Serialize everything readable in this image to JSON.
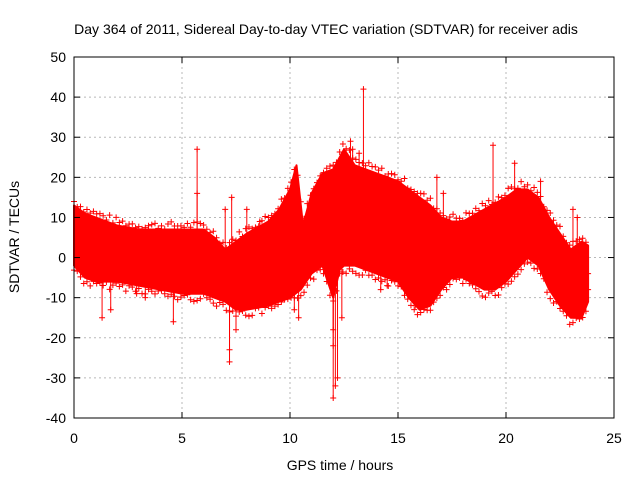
{
  "chart_data": {
    "type": "scatter",
    "title": "Day 364 of 2011, Sidereal Day-to-day VTEC variation (SDTVAR) for receiver adis",
    "xlabel": "GPS time / hours",
    "ylabel": "SDTVAR / TECUs",
    "xlim": [
      0,
      25
    ],
    "ylim": [
      -40,
      50
    ],
    "x_ticks": [
      0,
      5,
      10,
      15,
      20,
      25
    ],
    "y_ticks": [
      -40,
      -30,
      -20,
      -10,
      0,
      10,
      20,
      30,
      40,
      50
    ],
    "x_tick_labels": [
      "0",
      "5",
      "10",
      "15",
      "20",
      "25"
    ],
    "y_tick_labels": [
      "-40",
      "-30",
      "-20",
      "-10",
      "0",
      "10",
      "20",
      "30",
      "40",
      "50"
    ],
    "grid": true,
    "marker": "+",
    "series_color": "#ff0000",
    "series": [
      {
        "name": "SDTVAR",
        "band_upper": [
          [
            0,
            13
          ],
          [
            0.5,
            11
          ],
          [
            1,
            10
          ],
          [
            2,
            8
          ],
          [
            3,
            7
          ],
          [
            4,
            7
          ],
          [
            5,
            7
          ],
          [
            6,
            7
          ],
          [
            6.5,
            5
          ],
          [
            7,
            2
          ],
          [
            7.5,
            4
          ],
          [
            8,
            6
          ],
          [
            9,
            9
          ],
          [
            9.5,
            12
          ],
          [
            10,
            17
          ],
          [
            10.3,
            23
          ],
          [
            10.6,
            8
          ],
          [
            11,
            16
          ],
          [
            11.5,
            21
          ],
          [
            12,
            22
          ],
          [
            12.5,
            27
          ],
          [
            13,
            23
          ],
          [
            14,
            21
          ],
          [
            15,
            19
          ],
          [
            16,
            15
          ],
          [
            16.5,
            13
          ],
          [
            17,
            10
          ],
          [
            17.5,
            9
          ],
          [
            18,
            9
          ],
          [
            19,
            12
          ],
          [
            20,
            15
          ],
          [
            20.5,
            17
          ],
          [
            21,
            17
          ],
          [
            21.5,
            15
          ],
          [
            22,
            10
          ],
          [
            22.5,
            6
          ],
          [
            23,
            2
          ],
          [
            23.5,
            4
          ],
          [
            23.8,
            3
          ]
        ],
        "band_lower": [
          [
            0,
            -2
          ],
          [
            0.5,
            -5
          ],
          [
            1,
            -6
          ],
          [
            2,
            -6
          ],
          [
            3,
            -7
          ],
          [
            4,
            -8
          ],
          [
            5,
            -9
          ],
          [
            6,
            -9
          ],
          [
            6.5,
            -10
          ],
          [
            7,
            -11
          ],
          [
            7.5,
            -13
          ],
          [
            8,
            -13
          ],
          [
            9,
            -12
          ],
          [
            10,
            -10
          ],
          [
            10.5,
            -8
          ],
          [
            11,
            -4
          ],
          [
            11.5,
            -2
          ],
          [
            12,
            -10
          ],
          [
            12.3,
            -3
          ],
          [
            12.5,
            -2
          ],
          [
            13,
            -2
          ],
          [
            14,
            -4
          ],
          [
            15,
            -6
          ],
          [
            15.5,
            -10
          ],
          [
            16,
            -13
          ],
          [
            16.5,
            -12
          ],
          [
            17,
            -8
          ],
          [
            17.5,
            -5
          ],
          [
            18,
            -5
          ],
          [
            19,
            -8
          ],
          [
            19.5,
            -8
          ],
          [
            20,
            -6
          ],
          [
            20.5,
            -3
          ],
          [
            21,
            0
          ],
          [
            21.5,
            -2
          ],
          [
            22,
            -8
          ],
          [
            22.5,
            -12
          ],
          [
            23,
            -15
          ],
          [
            23.5,
            -15
          ],
          [
            23.8,
            -11
          ]
        ],
        "outliers": [
          [
            13.4,
            42
          ],
          [
            19.4,
            28
          ],
          [
            20.4,
            23.5
          ],
          [
            5.7,
            27
          ],
          [
            5.7,
            16
          ],
          [
            4.6,
            -16
          ],
          [
            1.3,
            -15
          ],
          [
            7.2,
            -26
          ],
          [
            7.2,
            -23
          ],
          [
            7.5,
            -18
          ],
          [
            12.0,
            -35
          ],
          [
            12.1,
            -32
          ],
          [
            12.2,
            -30
          ],
          [
            12.0,
            -22
          ],
          [
            12.0,
            -18
          ],
          [
            12.4,
            -15
          ],
          [
            12.8,
            29
          ],
          [
            12.9,
            27
          ],
          [
            13.2,
            26
          ],
          [
            16.8,
            20
          ],
          [
            17.1,
            16
          ],
          [
            21.6,
            19
          ],
          [
            23.1,
            12
          ],
          [
            23.3,
            10
          ],
          [
            23.7,
            0
          ],
          [
            23.8,
            -4
          ],
          [
            23.8,
            -8
          ],
          [
            7.0,
            12
          ],
          [
            7.3,
            15
          ],
          [
            8.0,
            12
          ],
          [
            8.6,
            9
          ],
          [
            9.6,
            10
          ],
          [
            10.4,
            -15
          ],
          [
            10.2,
            -13
          ],
          [
            3.3,
            -10
          ],
          [
            1.7,
            -13
          ],
          [
            2.9,
            -9
          ],
          [
            14.2,
            -8
          ],
          [
            14.5,
            -7
          ],
          [
            15.8,
            -12
          ]
        ]
      }
    ]
  }
}
